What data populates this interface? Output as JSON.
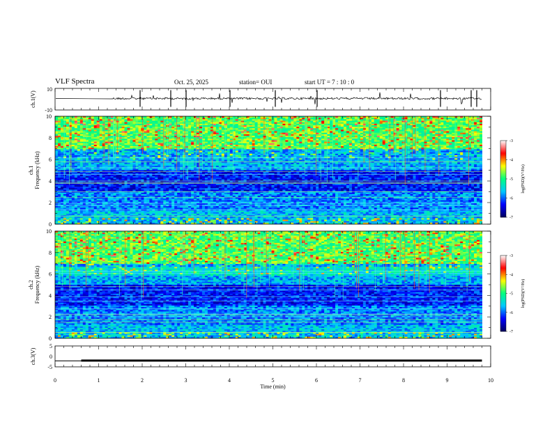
{
  "header": {
    "title": "VLF Spectra",
    "date": "Oct. 25, 2025",
    "station": "station= OUI",
    "start": "start  UT =   7 : 10 : 0"
  },
  "chart_data": [
    {
      "type": "line",
      "panel": "ch1-waveform",
      "ylabel": "ch.1(V)",
      "ylim": [
        -10,
        10
      ],
      "yticks": [
        "10",
        "-10"
      ],
      "xlim": [
        0,
        10
      ],
      "series": [
        {
          "values_note": "",
          "mean": 0,
          "color": "#000000"
        }
      ]
    },
    {
      "type": "heatmap",
      "panel": "ch1-spectrogram",
      "ylabel": "ch.1\nFrequency (kHz)",
      "ylim": [
        0,
        10
      ],
      "yticks": [
        "0",
        "2",
        "4",
        "6",
        "8",
        "10"
      ],
      "xlim": [
        0,
        10
      ]
    },
    {
      "type": "heatmap",
      "panel": "ch2-spectrogram",
      "ylabel": "ch.2\nFrequency (kHz)",
      "ylim": [
        0,
        10
      ],
      "yticks": [
        "0",
        "2",
        "4",
        "6",
        "8",
        "10"
      ],
      "xlim": [
        0,
        10
      ]
    },
    {
      "type": "line",
      "panel": "ch3-waveform",
      "ylabel": "ch.3(V)",
      "ylim": [
        -5,
        5
      ],
      "yticks": [
        "5",
        "0",
        "-5"
      ],
      "xlim": [
        0,
        10
      ],
      "xlabel": "Time (min)",
      "xticks": [
        "0",
        "1",
        "2",
        "3",
        "4",
        "5",
        "6",
        "7",
        "8",
        "9",
        "10"
      ],
      "series": [
        {
          "level_v": -2.0,
          "start_min": 0.6,
          "end_min": 9.8,
          "color": "#000000"
        }
      ]
    }
  ],
  "colorbar": {
    "label": "log(PSD)(V²/Hz)",
    "ticks": [
      "-3",
      "-4",
      "-5",
      "-6",
      "-7"
    ],
    "range": [
      -7,
      -3
    ],
    "colors": [
      "#000060",
      "#0000ff",
      "#00c8ff",
      "#00ff80",
      "#ffff00",
      "#ff0000",
      "#ffffff"
    ]
  }
}
